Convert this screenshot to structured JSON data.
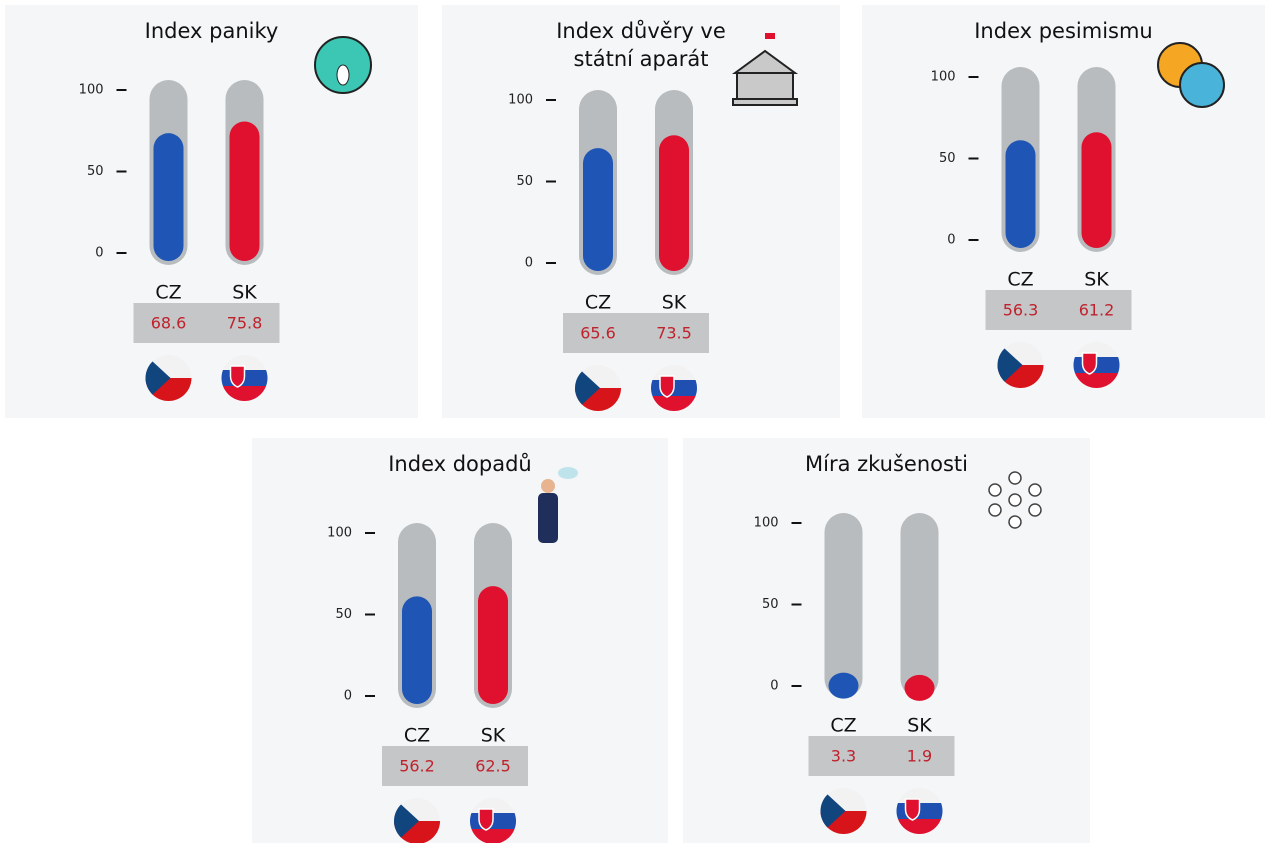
{
  "chart_data": [
    {
      "type": "bar",
      "title": "Index paniky",
      "categories": [
        "CZ",
        "SK"
      ],
      "values": [
        68.6,
        75.8
      ],
      "colors": [
        "#1f55b5",
        "#e0102f"
      ],
      "ylim": [
        0,
        100
      ],
      "yticks": [
        0,
        50,
        100
      ]
    },
    {
      "type": "bar",
      "title": "Index důvěry ve státní aparát",
      "categories": [
        "CZ",
        "SK"
      ],
      "values": [
        65.6,
        73.5
      ],
      "colors": [
        "#1f55b5",
        "#e0102f"
      ],
      "ylim": [
        0,
        100
      ],
      "yticks": [
        0,
        50,
        100
      ]
    },
    {
      "type": "bar",
      "title": "Index pesimismu",
      "categories": [
        "CZ",
        "SK"
      ],
      "values": [
        56.3,
        61.2
      ],
      "colors": [
        "#1f55b5",
        "#e0102f"
      ],
      "ylim": [
        0,
        100
      ],
      "yticks": [
        0,
        50,
        100
      ]
    },
    {
      "type": "bar",
      "title": "Index dopadů",
      "categories": [
        "CZ",
        "SK"
      ],
      "values": [
        56.2,
        62.5
      ],
      "colors": [
        "#1f55b5",
        "#e0102f"
      ],
      "ylim": [
        0,
        100
      ],
      "yticks": [
        0,
        50,
        100
      ]
    },
    {
      "type": "bar",
      "title": "Míra zkušenosti",
      "categories": [
        "CZ",
        "SK"
      ],
      "values": [
        3.3,
        1.9
      ],
      "colors": [
        "#1f55b5",
        "#e0102f"
      ],
      "ylim": [
        0,
        100
      ],
      "yticks": [
        0,
        50,
        100
      ]
    }
  ]
}
